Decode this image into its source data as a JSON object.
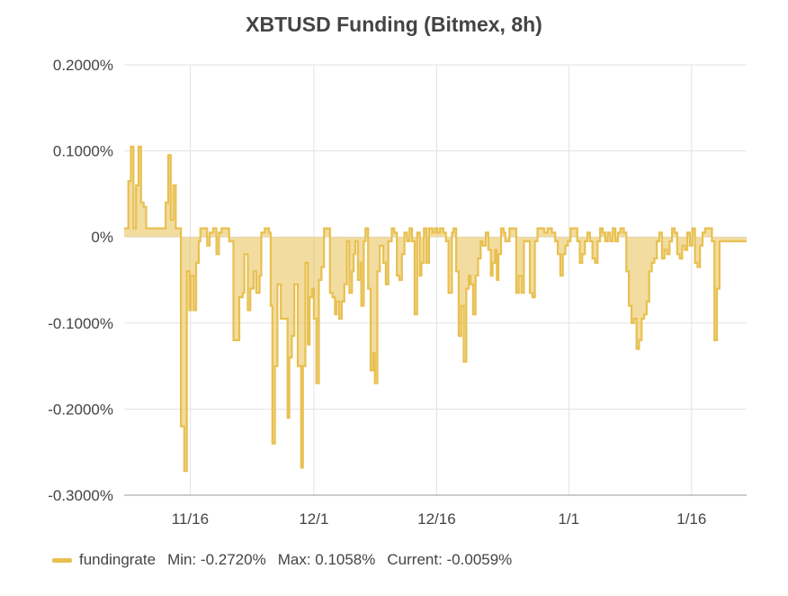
{
  "chart_data": {
    "type": "area",
    "title": "XBTUSD Funding (Bitmex, 8h)",
    "xlabel": "",
    "ylabel": "",
    "ylim": [
      -0.3,
      0.2
    ],
    "y_ticks": [
      "0.2000%",
      "0.1000%",
      "0%",
      "-0.1000%",
      "-0.2000%",
      "-0.3000%"
    ],
    "y_tick_values": [
      0.2,
      0.1,
      0,
      -0.1,
      -0.2,
      -0.3
    ],
    "x_range_days": [
      0,
      73.5
    ],
    "x_ticks": [
      {
        "label": "11/16",
        "day": 7.8
      },
      {
        "label": "12/1",
        "day": 22.4
      },
      {
        "label": "12/16",
        "day": 36.9
      },
      {
        "label": "1/1",
        "day": 52.5
      },
      {
        "label": "1/16",
        "day": 67.0
      }
    ],
    "grid": true,
    "legend_position": "bottom-left",
    "color": "#e8c050",
    "series": [
      {
        "name": "fundingrate",
        "points": [
          [
            0.0,
            0.01
          ],
          [
            0.5,
            0.065
          ],
          [
            0.8,
            0.105
          ],
          [
            1.1,
            0.01
          ],
          [
            1.4,
            0.06
          ],
          [
            1.7,
            0.105
          ],
          [
            2.0,
            0.04
          ],
          [
            2.3,
            0.035
          ],
          [
            2.6,
            0.01
          ],
          [
            3.0,
            0.01
          ],
          [
            3.5,
            0.01
          ],
          [
            4.0,
            0.01
          ],
          [
            4.6,
            0.01
          ],
          [
            4.9,
            0.04
          ],
          [
            5.2,
            0.095
          ],
          [
            5.5,
            0.02
          ],
          [
            5.8,
            0.06
          ],
          [
            6.1,
            0.01
          ],
          [
            6.4,
            0.01
          ],
          [
            6.7,
            -0.22
          ],
          [
            7.1,
            -0.272
          ],
          [
            7.4,
            -0.04
          ],
          [
            7.7,
            -0.085
          ],
          [
            7.9,
            -0.045
          ],
          [
            8.2,
            -0.085
          ],
          [
            8.5,
            -0.03
          ],
          [
            8.8,
            -0.005
          ],
          [
            9.0,
            0.01
          ],
          [
            9.5,
            0.01
          ],
          [
            9.8,
            -0.01
          ],
          [
            10.1,
            0.005
          ],
          [
            10.5,
            0.01
          ],
          [
            10.9,
            -0.02
          ],
          [
            11.2,
            0.005
          ],
          [
            11.5,
            0.01
          ],
          [
            12.0,
            0.01
          ],
          [
            12.4,
            -0.005
          ],
          [
            12.9,
            -0.12
          ],
          [
            13.3,
            -0.12
          ],
          [
            13.6,
            -0.07
          ],
          [
            14.0,
            -0.065
          ],
          [
            14.2,
            -0.02
          ],
          [
            14.6,
            -0.085
          ],
          [
            14.9,
            -0.06
          ],
          [
            15.3,
            -0.04
          ],
          [
            15.6,
            -0.065
          ],
          [
            16.0,
            -0.045
          ],
          [
            16.2,
            0.005
          ],
          [
            16.6,
            0.01
          ],
          [
            17.1,
            0.005
          ],
          [
            17.3,
            -0.08
          ],
          [
            17.5,
            -0.24
          ],
          [
            17.8,
            -0.15
          ],
          [
            18.1,
            -0.055
          ],
          [
            18.5,
            -0.095
          ],
          [
            19.0,
            -0.095
          ],
          [
            19.3,
            -0.21
          ],
          [
            19.5,
            -0.14
          ],
          [
            19.8,
            -0.115
          ],
          [
            20.1,
            -0.055
          ],
          [
            20.5,
            -0.15
          ],
          [
            20.9,
            -0.268
          ],
          [
            21.1,
            -0.15
          ],
          [
            21.4,
            -0.03
          ],
          [
            21.7,
            -0.125
          ],
          [
            21.9,
            -0.07
          ],
          [
            22.2,
            -0.06
          ],
          [
            22.4,
            -0.095
          ],
          [
            22.7,
            -0.17
          ],
          [
            23.0,
            -0.05
          ],
          [
            23.3,
            -0.035
          ],
          [
            23.6,
            0.01
          ],
          [
            24.0,
            0.01
          ],
          [
            24.3,
            -0.065
          ],
          [
            24.6,
            -0.07
          ],
          [
            24.9,
            -0.09
          ],
          [
            25.1,
            -0.075
          ],
          [
            25.4,
            -0.095
          ],
          [
            25.7,
            -0.075
          ],
          [
            26.0,
            -0.055
          ],
          [
            26.3,
            -0.005
          ],
          [
            26.6,
            -0.065
          ],
          [
            26.9,
            -0.04
          ],
          [
            27.1,
            -0.02
          ],
          [
            27.3,
            -0.005
          ],
          [
            27.6,
            -0.05
          ],
          [
            27.9,
            -0.03
          ],
          [
            28.0,
            -0.08
          ],
          [
            28.3,
            -0.005
          ],
          [
            28.5,
            0.01
          ],
          [
            28.8,
            -0.06
          ],
          [
            29.1,
            -0.155
          ],
          [
            29.4,
            -0.135
          ],
          [
            29.6,
            -0.17
          ],
          [
            29.9,
            -0.04
          ],
          [
            30.2,
            -0.01
          ],
          [
            30.6,
            -0.03
          ],
          [
            30.9,
            -0.055
          ],
          [
            31.2,
            -0.005
          ],
          [
            31.6,
            0.01
          ],
          [
            31.9,
            0.005
          ],
          [
            32.2,
            -0.045
          ],
          [
            32.5,
            -0.05
          ],
          [
            32.8,
            -0.02
          ],
          [
            33.1,
            0.005
          ],
          [
            33.4,
            -0.005
          ],
          [
            33.7,
            0.01
          ],
          [
            34.0,
            -0.005
          ],
          [
            34.3,
            -0.09
          ],
          [
            34.6,
            0.005
          ],
          [
            34.9,
            -0.045
          ],
          [
            35.1,
            -0.03
          ],
          [
            35.4,
            0.01
          ],
          [
            35.7,
            -0.03
          ],
          [
            36.0,
            0.01
          ],
          [
            36.4,
            0.005
          ],
          [
            36.7,
            0.01
          ],
          [
            37.0,
            0.005
          ],
          [
            37.3,
            0.01
          ],
          [
            37.7,
            0.005
          ],
          [
            38.0,
            -0.005
          ],
          [
            38.3,
            -0.065
          ],
          [
            38.7,
            0.005
          ],
          [
            38.9,
            0.01
          ],
          [
            39.2,
            -0.04
          ],
          [
            39.5,
            -0.115
          ],
          [
            39.8,
            -0.08
          ],
          [
            40.1,
            -0.145
          ],
          [
            40.4,
            -0.06
          ],
          [
            40.7,
            -0.045
          ],
          [
            40.9,
            -0.055
          ],
          [
            41.2,
            -0.09
          ],
          [
            41.5,
            -0.045
          ],
          [
            41.8,
            -0.025
          ],
          [
            42.1,
            -0.005
          ],
          [
            42.3,
            -0.01
          ],
          [
            42.7,
            0.005
          ],
          [
            43.0,
            -0.015
          ],
          [
            43.3,
            -0.045
          ],
          [
            43.5,
            -0.03
          ],
          [
            43.8,
            -0.015
          ],
          [
            44.0,
            -0.05
          ],
          [
            44.2,
            -0.02
          ],
          [
            44.5,
            0.01
          ],
          [
            44.8,
            0.005
          ],
          [
            45.0,
            -0.005
          ],
          [
            45.5,
            0.01
          ],
          [
            46.0,
            0.01
          ],
          [
            46.3,
            -0.065
          ],
          [
            46.6,
            -0.045
          ],
          [
            46.9,
            -0.065
          ],
          [
            47.2,
            -0.005
          ],
          [
            47.6,
            -0.005
          ],
          [
            47.9,
            -0.065
          ],
          [
            48.2,
            -0.07
          ],
          [
            48.5,
            -0.005
          ],
          [
            48.8,
            0.01
          ],
          [
            49.3,
            0.01
          ],
          [
            49.6,
            0.005
          ],
          [
            50.0,
            0.01
          ],
          [
            50.5,
            0.005
          ],
          [
            50.9,
            -0.005
          ],
          [
            51.2,
            -0.02
          ],
          [
            51.5,
            -0.045
          ],
          [
            51.8,
            -0.02
          ],
          [
            52.1,
            -0.01
          ],
          [
            52.4,
            -0.005
          ],
          [
            52.7,
            0.01
          ],
          [
            53.2,
            0.01
          ],
          [
            53.5,
            -0.005
          ],
          [
            53.8,
            -0.03
          ],
          [
            54.1,
            -0.02
          ],
          [
            54.4,
            -0.005
          ],
          [
            54.7,
            0.005
          ],
          [
            55.0,
            -0.005
          ],
          [
            55.3,
            -0.025
          ],
          [
            55.6,
            -0.03
          ],
          [
            55.9,
            -0.005
          ],
          [
            56.2,
            0.01
          ],
          [
            56.5,
            0.005
          ],
          [
            56.8,
            -0.005
          ],
          [
            57.1,
            0.005
          ],
          [
            57.4,
            -0.005
          ],
          [
            57.7,
            0.01
          ],
          [
            58.0,
            -0.005
          ],
          [
            58.3,
            0.005
          ],
          [
            58.6,
            0.01
          ],
          [
            59.0,
            0.005
          ],
          [
            59.3,
            -0.04
          ],
          [
            59.6,
            -0.08
          ],
          [
            59.9,
            -0.1
          ],
          [
            60.2,
            -0.095
          ],
          [
            60.5,
            -0.13
          ],
          [
            60.8,
            -0.12
          ],
          [
            61.1,
            -0.095
          ],
          [
            61.4,
            -0.09
          ],
          [
            61.7,
            -0.075
          ],
          [
            62.0,
            -0.04
          ],
          [
            62.3,
            -0.03
          ],
          [
            62.6,
            -0.025
          ],
          [
            62.9,
            -0.005
          ],
          [
            63.2,
            0.005
          ],
          [
            63.5,
            -0.025
          ],
          [
            63.8,
            -0.015
          ],
          [
            64.1,
            -0.02
          ],
          [
            64.4,
            -0.005
          ],
          [
            64.7,
            0.01
          ],
          [
            65.0,
            0.005
          ],
          [
            65.3,
            -0.02
          ],
          [
            65.6,
            -0.025
          ],
          [
            65.9,
            -0.01
          ],
          [
            66.2,
            -0.015
          ],
          [
            66.5,
            0.005
          ],
          [
            66.8,
            -0.01
          ],
          [
            67.1,
            0.01
          ],
          [
            67.4,
            -0.03
          ],
          [
            67.7,
            -0.035
          ],
          [
            68.0,
            -0.01
          ],
          [
            68.3,
            0.005
          ],
          [
            68.6,
            0.01
          ],
          [
            69.0,
            0.01
          ],
          [
            69.4,
            -0.005
          ],
          [
            69.7,
            -0.12
          ],
          [
            70.0,
            -0.06
          ],
          [
            70.3,
            -0.005
          ]
        ]
      }
    ],
    "legend": {
      "name": "fundingrate",
      "min": "Min: -0.2720%",
      "max": "Max: 0.1058%",
      "current": "Current: -0.0059%"
    }
  }
}
